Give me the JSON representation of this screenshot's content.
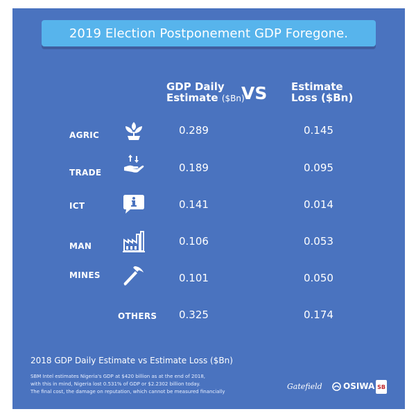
{
  "title": "2019 Election Postponement GDP Foregone.",
  "headers": {
    "gdp_line1": "GDP Daily",
    "gdp_line2": "Estimate",
    "gdp_unit": "($Bn)",
    "vs": "VS",
    "loss_line1": "Estimate",
    "loss_line2": "Loss ($Bn)"
  },
  "rows": [
    {
      "label": "AGRIC",
      "icon": "sprout-icon",
      "gdp": "0.289",
      "loss": "0.145"
    },
    {
      "label": "TRADE",
      "icon": "hand-arrows-icon",
      "gdp": "0.189",
      "loss": "0.095"
    },
    {
      "label": "ICT",
      "icon": "info-bubble-icon",
      "gdp": "0.141",
      "loss": "0.014"
    },
    {
      "label": "MAN",
      "icon": "factory-icon",
      "gdp": "0.106",
      "loss": "0.053"
    },
    {
      "label": "MINES",
      "icon": "pickaxe-icon",
      "gdp": "0.101",
      "loss": "0.050"
    },
    {
      "label": "OTHERS",
      "icon": "",
      "gdp": "0.325",
      "loss": "0.174"
    }
  ],
  "footer": {
    "subtitle": "2018 GDP Daily Estimate vs Estimate Loss ($Bn)",
    "note_line1": "SBM Intel estimates Nigeria's GDP at $420 billion as at the end of 2018,",
    "note_line2": "with this in mind, Nigeria lost 0.531% of GDP or $2.2302 billion today.",
    "note_line3": "The final cost, the damage on reputation, which cannot be measured financially",
    "brand1": "Gatefield",
    "brand2": "OSIWA",
    "brand3": "SB"
  },
  "colors": {
    "background": "#4a73bf",
    "title_bar": "#57b4ec",
    "text": "#ffffff"
  }
}
